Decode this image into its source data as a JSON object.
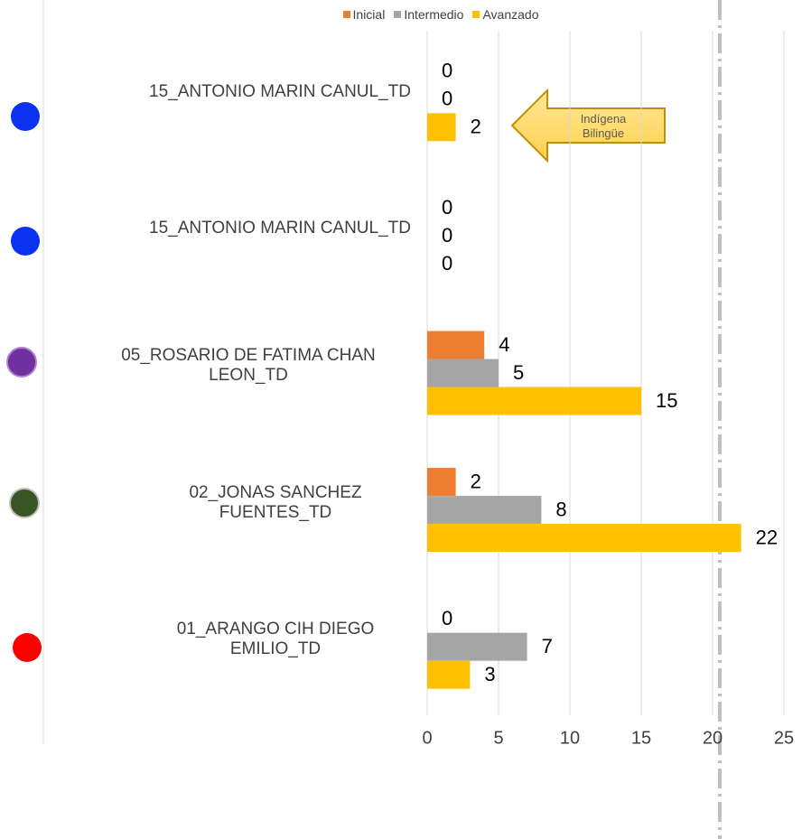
{
  "chart_data": {
    "type": "bar",
    "orientation": "horizontal",
    "categories": [
      "15_ANTONIO MARIN CANUL_TD",
      "15_ANTONIO MARIN CANUL_TD",
      "05_ROSARIO DE FATIMA CHAN LEON_TD",
      "02_JONAS SANCHEZ FUENTES_TD",
      "01_ARANGO CIH DIEGO EMILIO_TD"
    ],
    "series": [
      {
        "name": "Inicial",
        "color": "#ed7d31",
        "values": [
          0,
          0,
          4,
          2,
          0
        ]
      },
      {
        "name": "Intermedio",
        "color": "#a5a5a5",
        "values": [
          0,
          0,
          5,
          8,
          7
        ]
      },
      {
        "name": "Avanzado",
        "color": "#ffc000",
        "values": [
          2,
          0,
          15,
          22,
          3
        ]
      }
    ],
    "xlim": [
      0,
      25
    ],
    "xticks": [
      0,
      5,
      10,
      15,
      20,
      25
    ],
    "grid": true,
    "legend": "top",
    "annotation": "Indígena Bilingüe"
  }
}
